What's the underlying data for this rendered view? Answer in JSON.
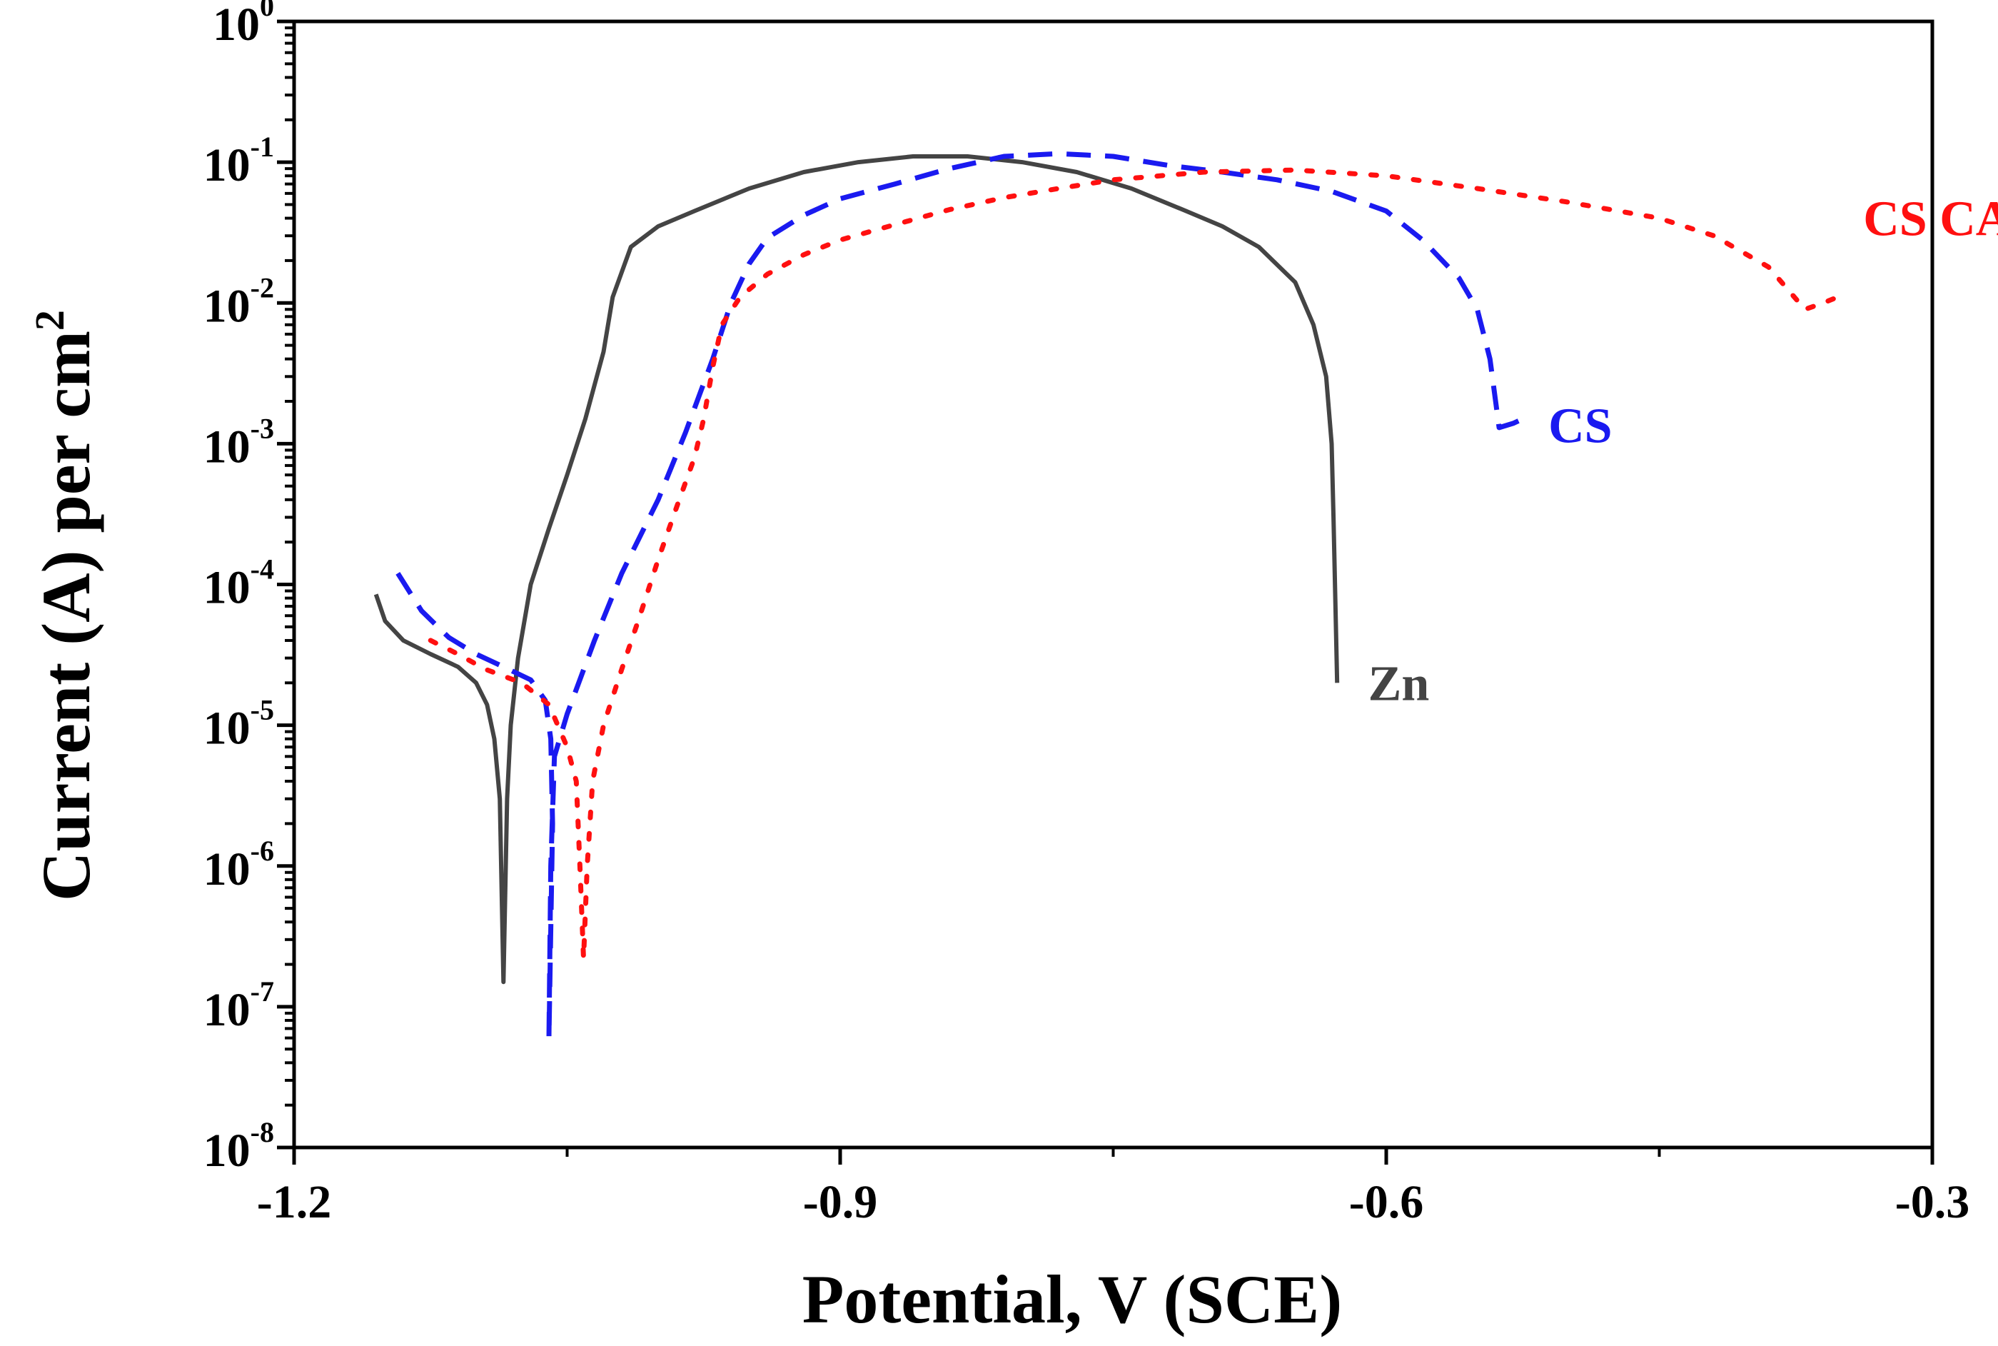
{
  "chart_data": {
    "type": "line",
    "title": "",
    "xlabel": "Potential, V  (SCE)",
    "ylabel": {
      "main": "Current (A) per cm",
      "superscript": "2"
    },
    "xscale": "linear",
    "yscale": "log",
    "xlim": [
      -1.2,
      -0.3
    ],
    "ylim": [
      1e-08,
      1
    ],
    "x_ticks": [
      {
        "value": -1.2,
        "label": "-1.2"
      },
      {
        "value": -0.9,
        "label": "-0.9"
      },
      {
        "value": -0.6,
        "label": "-0.6"
      },
      {
        "value": -0.3,
        "label": "-0.3"
      }
    ],
    "x_minor_ticks": [
      -1.05,
      -0.75,
      -0.45
    ],
    "y_ticks": [
      {
        "exp": 0,
        "base": "10",
        "sup": "0"
      },
      {
        "exp": -1,
        "base": "10",
        "sup": "-1"
      },
      {
        "exp": -2,
        "base": "10",
        "sup": "-2"
      },
      {
        "exp": -3,
        "base": "10",
        "sup": "-3"
      },
      {
        "exp": -4,
        "base": "10",
        "sup": "-4"
      },
      {
        "exp": -5,
        "base": "10",
        "sup": "-5"
      },
      {
        "exp": -6,
        "base": "10",
        "sup": "-6"
      },
      {
        "exp": -7,
        "base": "10",
        "sup": "-7"
      },
      {
        "exp": -8,
        "base": "10",
        "sup": "-8"
      }
    ],
    "series": [
      {
        "name": "Zn",
        "label": "Zn",
        "color": "#444444",
        "dash": "solid",
        "label_at": [
          -0.617,
          2e-05
        ],
        "points": [
          [
            -1.155,
            8.5e-05
          ],
          [
            -1.15,
            5.5e-05
          ],
          [
            -1.14,
            4e-05
          ],
          [
            -1.125,
            3.2e-05
          ],
          [
            -1.11,
            2.6e-05
          ],
          [
            -1.1,
            2e-05
          ],
          [
            -1.094,
            1.4e-05
          ],
          [
            -1.09,
            8e-06
          ],
          [
            -1.087,
            3e-06
          ],
          [
            -1.085,
            1.5e-07
          ],
          [
            -1.083,
            3e-06
          ],
          [
            -1.081,
            1e-05
          ],
          [
            -1.077,
            3e-05
          ],
          [
            -1.07,
            0.0001
          ],
          [
            -1.06,
            0.00025
          ],
          [
            -1.05,
            0.0006
          ],
          [
            -1.04,
            0.0015
          ],
          [
            -1.03,
            0.0045
          ],
          [
            -1.025,
            0.011
          ],
          [
            -1.015,
            0.025
          ],
          [
            -1.0,
            0.035
          ],
          [
            -0.98,
            0.045
          ],
          [
            -0.95,
            0.065
          ],
          [
            -0.92,
            0.085
          ],
          [
            -0.89,
            0.1
          ],
          [
            -0.86,
            0.11
          ],
          [
            -0.83,
            0.11
          ],
          [
            -0.8,
            0.1
          ],
          [
            -0.77,
            0.085
          ],
          [
            -0.74,
            0.065
          ],
          [
            -0.71,
            0.045
          ],
          [
            -0.69,
            0.035
          ],
          [
            -0.67,
            0.025
          ],
          [
            -0.65,
            0.014
          ],
          [
            -0.64,
            0.007
          ],
          [
            -0.633,
            0.003
          ],
          [
            -0.63,
            0.001
          ],
          [
            -0.629,
            0.0003
          ],
          [
            -0.628,
            8e-05
          ],
          [
            -0.627,
            2e-05
          ]
        ]
      },
      {
        "name": "CS",
        "label": "CS",
        "color": "#1a1af0",
        "dash": "dashed",
        "label_at": [
          -0.518,
          0.00135
        ],
        "points": [
          [
            -1.143,
            0.00012
          ],
          [
            -1.13,
            6.5e-05
          ],
          [
            -1.115,
            4.2e-05
          ],
          [
            -1.1,
            3.2e-05
          ],
          [
            -1.085,
            2.6e-05
          ],
          [
            -1.07,
            2.1e-05
          ],
          [
            -1.062,
            1.5e-05
          ],
          [
            -1.059,
            8e-06
          ],
          [
            -1.058,
            2e-06
          ],
          [
            -1.06,
            6e-08
          ],
          [
            -1.059,
            1e-06
          ],
          [
            -1.057,
            6e-06
          ],
          [
            -1.05,
            1.2e-05
          ],
          [
            -1.035,
            4e-05
          ],
          [
            -1.02,
            0.00012
          ],
          [
            -1.0,
            0.0004
          ],
          [
            -0.985,
            0.0012
          ],
          [
            -0.97,
            0.004
          ],
          [
            -0.96,
            0.01
          ],
          [
            -0.95,
            0.019
          ],
          [
            -0.94,
            0.029
          ],
          [
            -0.92,
            0.042
          ],
          [
            -0.9,
            0.055
          ],
          [
            -0.87,
            0.07
          ],
          [
            -0.84,
            0.09
          ],
          [
            -0.81,
            0.11
          ],
          [
            -0.78,
            0.115
          ],
          [
            -0.75,
            0.11
          ],
          [
            -0.72,
            0.095
          ],
          [
            -0.69,
            0.085
          ],
          [
            -0.66,
            0.075
          ],
          [
            -0.63,
            0.062
          ],
          [
            -0.6,
            0.045
          ],
          [
            -0.58,
            0.028
          ],
          [
            -0.56,
            0.015
          ],
          [
            -0.55,
            0.009
          ],
          [
            -0.543,
            0.004
          ],
          [
            -0.538,
            0.0013
          ],
          [
            -0.53,
            0.0014
          ],
          [
            -0.525,
            0.0015
          ]
        ]
      },
      {
        "name": "CS CAF",
        "label": "CS CAF",
        "color": "#ff1010",
        "dash": "dotted",
        "label_at": [
          -0.345,
          0.04
        ],
        "points": [
          [
            -1.125,
            4e-05
          ],
          [
            -1.11,
            3.2e-05
          ],
          [
            -1.095,
            2.5e-05
          ],
          [
            -1.075,
            2e-05
          ],
          [
            -1.06,
            1.4e-05
          ],
          [
            -1.05,
            7e-06
          ],
          [
            -1.045,
            4e-06
          ],
          [
            -1.043,
            1e-06
          ],
          [
            -1.041,
            2.2e-07
          ],
          [
            -1.039,
            1e-06
          ],
          [
            -1.036,
            4e-06
          ],
          [
            -1.03,
            1e-05
          ],
          [
            -1.02,
            2.5e-05
          ],
          [
            -1.01,
            6e-05
          ],
          [
            -1.0,
            0.00015
          ],
          [
            -0.99,
            0.00035
          ],
          [
            -0.98,
            0.0008
          ],
          [
            -0.975,
            0.0015
          ],
          [
            -0.97,
            0.0035
          ],
          [
            -0.965,
            0.007
          ],
          [
            -0.955,
            0.011
          ],
          [
            -0.94,
            0.016
          ],
          [
            -0.92,
            0.022
          ],
          [
            -0.9,
            0.028
          ],
          [
            -0.87,
            0.036
          ],
          [
            -0.84,
            0.046
          ],
          [
            -0.81,
            0.056
          ],
          [
            -0.78,
            0.065
          ],
          [
            -0.75,
            0.075
          ],
          [
            -0.7,
            0.085
          ],
          [
            -0.65,
            0.088
          ],
          [
            -0.6,
            0.08
          ],
          [
            -0.55,
            0.065
          ],
          [
            -0.5,
            0.052
          ],
          [
            -0.45,
            0.04
          ],
          [
            -0.42,
            0.03
          ],
          [
            -0.39,
            0.018
          ],
          [
            -0.37,
            0.009
          ],
          [
            -0.36,
            0.01
          ],
          [
            -0.352,
            0.011
          ]
        ]
      }
    ]
  }
}
